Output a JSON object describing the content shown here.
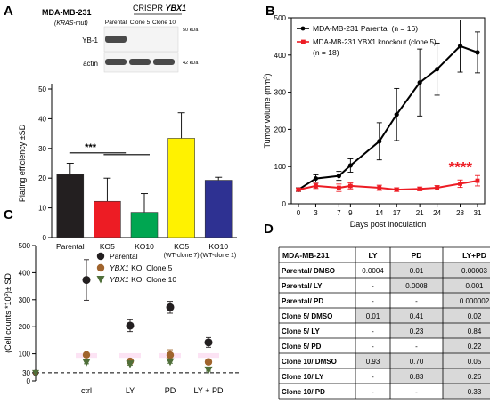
{
  "panels": {
    "a": "A",
    "b": "B",
    "c": "C",
    "d": "D"
  },
  "panelA": {
    "cell_line": "MDA-MB-231",
    "mutation": "(KRAS-mut)",
    "crispr_label": "CRISPR",
    "crispr_gene": "YBX1",
    "lanes": [
      "Parental",
      "Clone 5",
      "Clone 10"
    ],
    "bands": [
      {
        "label": "YB-1",
        "kda": "50 kDa",
        "intensity": [
          1,
          0,
          0
        ]
      },
      {
        "label": "actin",
        "kda": "42 kDa",
        "intensity": [
          1,
          1,
          1
        ]
      }
    ]
  },
  "chart_data": [
    {
      "id": "A",
      "type": "bar",
      "categories": [
        "Parental",
        "KO5",
        "KO10",
        "KO5",
        "KO10"
      ],
      "category_sublabels": [
        "",
        "",
        "",
        "(WT-clone 7)",
        "(WT-clone 1)"
      ],
      "values": [
        21.3,
        12.2,
        8.5,
        33.4,
        19.3
      ],
      "errors": [
        3.7,
        7.8,
        6.3,
        8.6,
        1.0
      ],
      "colors": [
        "#231f20",
        "#ed1c24",
        "#00a651",
        "#fff200",
        "#2e3192"
      ],
      "ylabel": "Plating efficiency ±SD",
      "ylim": [
        0,
        50
      ],
      "yticks": [
        0,
        10,
        20,
        30,
        40,
        50
      ],
      "annotation": "***"
    },
    {
      "id": "B",
      "type": "line",
      "x": [
        0,
        3,
        7,
        9,
        14,
        17,
        21,
        24,
        28,
        31
      ],
      "series": [
        {
          "name": "MDA-MB-231 Parental",
          "n_label": "(n = 16)",
          "color": "#000000",
          "values": [
            38,
            68,
            75,
            103,
            168,
            240,
            326,
            362,
            424,
            407
          ],
          "errors": [
            5,
            10,
            12,
            18,
            50,
            70,
            90,
            70,
            70,
            55
          ]
        },
        {
          "name": "MDA-MB-231 YBX1 knockout (clone 5)",
          "n_label": "(n = 18)",
          "color": "#ed1c24",
          "values": [
            38,
            48,
            43,
            48,
            43,
            38,
            40,
            43,
            54,
            62
          ],
          "errors": [
            4,
            7,
            10,
            8,
            7,
            5,
            5,
            6,
            10,
            14
          ]
        }
      ],
      "xlabel": "Days post inoculation",
      "ylabel": "Tumor volume (mm",
      "ylabel_sup": "3",
      "ylabel_close": ")",
      "ylim": [
        0,
        500
      ],
      "yticks": [
        0,
        100,
        200,
        300,
        400,
        500
      ],
      "annotation": "****"
    },
    {
      "id": "C",
      "type": "scatter",
      "categories": [
        "ctrl",
        "LY",
        "PD",
        "LY + PD"
      ],
      "series": [
        {
          "name": "Parental",
          "color": "#231f20",
          "marker": "circle",
          "values": [
            373,
            204,
            272,
            142
          ],
          "errors": [
            75,
            22,
            22,
            18
          ]
        },
        {
          "name": "YBX1 KO, Clone 5",
          "color": "#a0642d",
          "marker": "circle",
          "values": [
            96,
            72,
            95,
            70
          ],
          "errors": [
            5,
            6,
            20,
            6
          ]
        },
        {
          "name": "YBX1 KO, Clone 10",
          "color": "#4f6f3a",
          "marker": "triangle",
          "values": [
            68,
            62,
            70,
            40
          ],
          "errors": [
            5,
            4,
            5,
            4
          ]
        }
      ],
      "ylabel": "(Cell counts *10",
      "ylabel_sup": "3",
      "ylabel_close": ")± SD",
      "ylim": [
        0,
        500
      ],
      "yticks": [
        0,
        30,
        100,
        200,
        300,
        400,
        500
      ],
      "reference_line": 30
    }
  ],
  "table": {
    "headers": [
      "MDA-MB-231",
      "LY",
      "PD",
      "LY+PD"
    ],
    "rows": [
      {
        "label": "Parental/ DMSO",
        "cells": [
          "0.0004",
          "0.01",
          "0.00003"
        ],
        "shade": [
          false,
          true,
          true
        ]
      },
      {
        "label": "Parental/ LY",
        "cells": [
          "-",
          "0.0008",
          "0.001"
        ],
        "shade": [
          false,
          true,
          true
        ]
      },
      {
        "label": "Parental/ PD",
        "cells": [
          "-",
          "-",
          "0.000002"
        ],
        "shade": [
          false,
          false,
          true
        ]
      },
      {
        "label": "Clone 5/ DMSO",
        "cells": [
          "0.01",
          "0.41",
          "0.02"
        ],
        "shade": [
          true,
          true,
          true
        ]
      },
      {
        "label": "Clone 5/ LY",
        "cells": [
          "-",
          "0.23",
          "0.84"
        ],
        "shade": [
          false,
          true,
          true
        ]
      },
      {
        "label": "Clone 5/ PD",
        "cells": [
          "-",
          "-",
          "0.22"
        ],
        "shade": [
          false,
          false,
          true
        ]
      },
      {
        "label": "Clone 10/ DMSO",
        "cells": [
          "0.93",
          "0.70",
          "0.05"
        ],
        "shade": [
          true,
          true,
          true
        ]
      },
      {
        "label": "Clone 10/ LY",
        "cells": [
          "-",
          "0.83",
          "0.26"
        ],
        "shade": [
          false,
          true,
          true
        ]
      },
      {
        "label": "Clone 10/ PD",
        "cells": [
          "-",
          "-",
          "0.33"
        ],
        "shade": [
          false,
          false,
          true
        ]
      }
    ],
    "shade_color": "#d9d9d9"
  }
}
